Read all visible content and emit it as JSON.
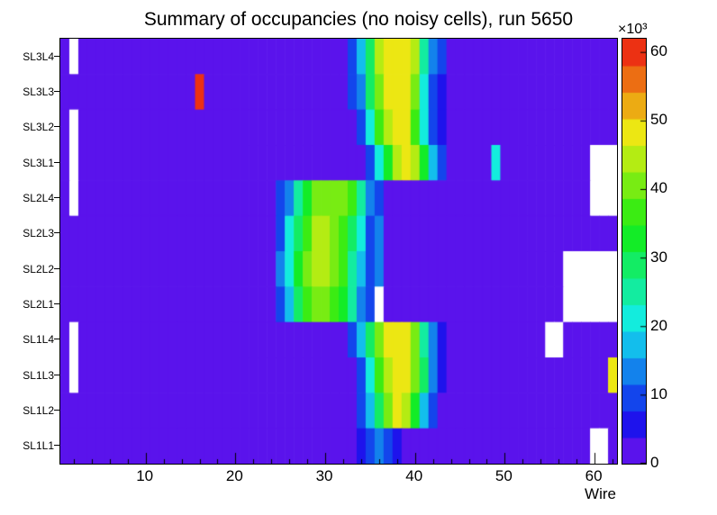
{
  "chart_data": {
    "type": "heatmap",
    "title": "Summary of occupancies (no noisy cells), run 5650",
    "xlabel": "Wire",
    "x_min": 1,
    "x_max": 62,
    "x_major_ticks": [
      10,
      20,
      30,
      40,
      50,
      60
    ],
    "x_minor_tick_step": 2,
    "y_categories_top_to_bottom": [
      "SL3L4",
      "SL3L3",
      "SL3L2",
      "SL3L1",
      "SL2L4",
      "SL2L3",
      "SL2L2",
      "SL2L1",
      "SL1L4",
      "SL1L3",
      "SL1L2",
      "SL1L1"
    ],
    "colorbar": {
      "min": 0,
      "max": 62,
      "ticks": [
        0,
        10,
        20,
        30,
        40,
        50,
        60
      ],
      "multiplier_label": "×10³"
    },
    "palette": [
      "#5a13ec",
      "#1e13ec",
      "#1345ec",
      "#1382ec",
      "#13beec",
      "#13ecdd",
      "#13eca0",
      "#13ec64",
      "#13ec27",
      "#3bec13",
      "#78ec13",
      "#b4ec13",
      "#ece713",
      "#ecab13",
      "#ec6e13",
      "#ec3113"
    ],
    "empty_bin_color": "#ffffff",
    "frame_color": "#000000",
    "values_unit": "10^3 hits; null = empty (white) bin; columns = wires 1-62, rows ordered as y_categories_top_to_bottom",
    "z": [
      [
        3,
        null,
        3,
        3,
        3,
        3,
        3,
        3,
        3,
        3,
        3,
        3,
        3,
        3,
        3,
        3,
        3,
        3,
        3,
        3,
        3,
        3,
        3,
        3,
        3,
        3,
        3,
        3,
        3,
        3,
        3,
        3,
        10,
        16,
        30,
        44,
        50,
        50,
        50,
        44,
        25,
        12,
        8,
        3,
        3,
        3,
        3,
        3,
        3,
        3,
        3,
        3,
        3,
        3,
        3,
        3,
        3,
        3,
        3,
        3,
        3,
        3
      ],
      [
        3,
        3,
        3,
        3,
        3,
        3,
        3,
        3,
        3,
        3,
        3,
        3,
        3,
        3,
        3,
        62,
        3,
        3,
        3,
        3,
        3,
        3,
        3,
        3,
        3,
        3,
        3,
        3,
        3,
        3,
        3,
        3,
        8,
        14,
        28,
        42,
        50,
        50,
        48,
        40,
        22,
        10,
        6,
        3,
        3,
        3,
        3,
        3,
        3,
        3,
        3,
        3,
        3,
        3,
        3,
        3,
        3,
        3,
        3,
        3,
        3,
        3
      ],
      [
        3,
        null,
        3,
        3,
        3,
        3,
        3,
        3,
        3,
        3,
        3,
        3,
        3,
        3,
        3,
        3,
        3,
        3,
        3,
        3,
        3,
        3,
        3,
        3,
        3,
        3,
        3,
        3,
        3,
        3,
        3,
        3,
        3,
        10,
        20,
        35,
        46,
        50,
        48,
        38,
        22,
        10,
        6,
        3,
        3,
        3,
        3,
        3,
        3,
        3,
        3,
        3,
        3,
        3,
        3,
        3,
        3,
        3,
        3,
        3,
        3,
        3
      ],
      [
        3,
        null,
        3,
        3,
        3,
        3,
        3,
        3,
        3,
        3,
        3,
        3,
        3,
        3,
        3,
        3,
        3,
        3,
        3,
        3,
        3,
        3,
        3,
        3,
        3,
        3,
        3,
        3,
        3,
        3,
        3,
        3,
        3,
        3,
        10,
        20,
        33,
        45,
        50,
        44,
        33,
        16,
        8,
        3,
        3,
        3,
        3,
        3,
        20,
        3,
        3,
        3,
        3,
        3,
        3,
        3,
        3,
        3,
        3,
        null,
        null,
        null
      ],
      [
        3,
        null,
        3,
        3,
        3,
        3,
        3,
        3,
        3,
        3,
        3,
        3,
        3,
        3,
        3,
        3,
        3,
        3,
        3,
        3,
        3,
        3,
        3,
        3,
        8,
        14,
        25,
        33,
        40,
        42,
        42,
        40,
        35,
        25,
        12,
        8,
        3,
        3,
        3,
        3,
        3,
        3,
        3,
        3,
        3,
        3,
        3,
        3,
        3,
        3,
        3,
        3,
        3,
        3,
        3,
        3,
        3,
        3,
        3,
        null,
        null,
        null
      ],
      [
        3,
        3,
        3,
        3,
        3,
        3,
        3,
        3,
        3,
        3,
        3,
        3,
        3,
        3,
        3,
        3,
        3,
        3,
        3,
        3,
        3,
        3,
        3,
        3,
        10,
        20,
        30,
        38,
        44,
        44,
        42,
        38,
        30,
        20,
        10,
        12,
        3,
        3,
        3,
        3,
        3,
        3,
        3,
        3,
        3,
        3,
        3,
        3,
        3,
        3,
        3,
        3,
        3,
        3,
        3,
        3,
        3,
        3,
        3,
        3,
        3,
        3
      ],
      [
        3,
        3,
        3,
        3,
        3,
        3,
        3,
        3,
        3,
        3,
        3,
        3,
        3,
        3,
        3,
        3,
        3,
        3,
        3,
        3,
        3,
        3,
        3,
        3,
        12,
        22,
        33,
        40,
        45,
        44,
        40,
        35,
        27,
        16,
        8,
        12,
        3,
        3,
        3,
        3,
        3,
        3,
        3,
        3,
        3,
        3,
        3,
        3,
        3,
        3,
        3,
        3,
        3,
        3,
        3,
        3,
        null,
        null,
        null,
        null,
        null,
        null
      ],
      [
        3,
        3,
        3,
        3,
        3,
        3,
        3,
        3,
        3,
        3,
        3,
        3,
        3,
        3,
        3,
        3,
        3,
        3,
        3,
        3,
        3,
        3,
        3,
        3,
        8,
        18,
        28,
        35,
        40,
        40,
        38,
        32,
        24,
        12,
        10,
        null,
        3,
        3,
        3,
        3,
        3,
        3,
        3,
        3,
        3,
        3,
        3,
        3,
        3,
        3,
        3,
        3,
        3,
        3,
        3,
        3,
        null,
        null,
        null,
        null,
        null,
        null
      ],
      [
        3,
        null,
        3,
        3,
        3,
        3,
        3,
        3,
        3,
        3,
        3,
        3,
        3,
        3,
        3,
        3,
        3,
        3,
        3,
        3,
        3,
        3,
        3,
        3,
        3,
        3,
        3,
        3,
        3,
        3,
        3,
        3,
        8,
        16,
        30,
        42,
        48,
        50,
        48,
        40,
        25,
        12,
        6,
        3,
        3,
        3,
        3,
        3,
        3,
        3,
        3,
        3,
        3,
        3,
        null,
        null,
        3,
        3,
        3,
        3,
        3,
        3
      ],
      [
        3,
        null,
        3,
        3,
        3,
        3,
        3,
        3,
        3,
        3,
        3,
        3,
        3,
        3,
        3,
        3,
        3,
        3,
        3,
        3,
        3,
        3,
        3,
        3,
        3,
        3,
        3,
        3,
        3,
        3,
        3,
        3,
        3,
        10,
        20,
        35,
        46,
        50,
        50,
        42,
        28,
        14,
        6,
        3,
        3,
        3,
        3,
        3,
        3,
        3,
        3,
        3,
        3,
        3,
        3,
        3,
        3,
        3,
        3,
        3,
        3,
        48
      ],
      [
        3,
        3,
        3,
        3,
        3,
        3,
        3,
        3,
        3,
        3,
        3,
        3,
        3,
        3,
        3,
        3,
        3,
        3,
        3,
        3,
        3,
        3,
        3,
        3,
        3,
        3,
        3,
        3,
        3,
        3,
        3,
        3,
        3,
        8,
        16,
        30,
        42,
        48,
        44,
        33,
        18,
        8,
        3,
        3,
        3,
        3,
        3,
        3,
        3,
        3,
        3,
        3,
        3,
        3,
        3,
        3,
        3,
        3,
        3,
        3,
        3,
        3
      ],
      [
        3,
        3,
        3,
        3,
        3,
        3,
        3,
        3,
        3,
        3,
        3,
        3,
        3,
        3,
        3,
        3,
        3,
        3,
        3,
        3,
        3,
        3,
        3,
        3,
        3,
        3,
        3,
        3,
        3,
        3,
        3,
        3,
        3,
        6,
        10,
        14,
        10,
        6,
        3,
        3,
        3,
        3,
        3,
        3,
        3,
        3,
        3,
        3,
        3,
        3,
        3,
        3,
        3,
        3,
        3,
        3,
        3,
        3,
        3,
        null,
        null,
        3
      ]
    ]
  }
}
